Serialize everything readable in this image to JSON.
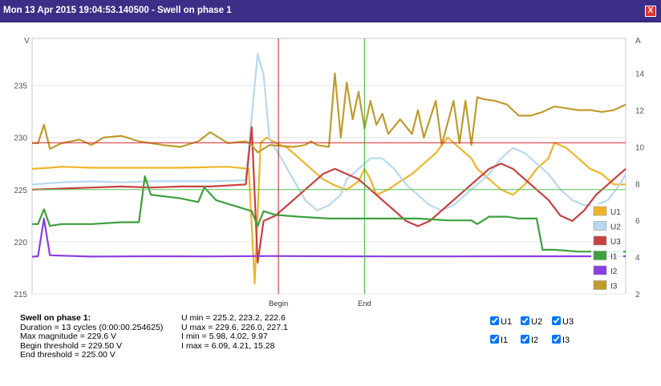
{
  "window": {
    "title": "Mon 13 Apr 2015 19:04:53.140500 - Swell on phase 1",
    "close_label": "X"
  },
  "chart_data": {
    "type": "line",
    "left_axis": {
      "label": "V",
      "min": 215,
      "max": 239.5,
      "ticks": [
        215,
        220,
        225,
        230,
        235
      ]
    },
    "right_axis": {
      "label": "A",
      "min": 2,
      "max": 15.9,
      "ticks": [
        2,
        4,
        6,
        8,
        10,
        12,
        14
      ]
    },
    "x_range": [
      0,
      100
    ],
    "markers": [
      {
        "label": "Begin",
        "x": 41.5,
        "color": "#b22222"
      },
      {
        "label": "End",
        "x": 56.0,
        "color": "#3cb43c"
      }
    ],
    "thresholds": [
      {
        "value": 229.5,
        "color": "#d62020"
      },
      {
        "value": 225.0,
        "color": "#5cc85c"
      }
    ],
    "series": [
      {
        "name": "U1",
        "axis": "left",
        "color": "#f0b429",
        "points": [
          [
            0,
            227
          ],
          [
            3,
            227.1
          ],
          [
            5,
            227.2
          ],
          [
            10,
            227.1
          ],
          [
            18,
            227.1
          ],
          [
            25,
            227.1
          ],
          [
            33,
            227.2
          ],
          [
            36.5,
            227
          ],
          [
            37.5,
            216
          ],
          [
            38.5,
            229.5
          ],
          [
            39.5,
            230
          ],
          [
            41,
            229.5
          ],
          [
            43,
            229
          ],
          [
            45,
            228
          ],
          [
            47,
            227
          ],
          [
            49,
            226
          ],
          [
            51,
            225.4
          ],
          [
            53,
            225
          ],
          [
            55,
            225.8
          ],
          [
            56,
            227
          ],
          [
            57,
            226
          ],
          [
            58,
            224.5
          ],
          [
            60,
            225
          ],
          [
            62,
            225.8
          ],
          [
            64,
            226.5
          ],
          [
            66,
            227.5
          ],
          [
            68,
            228.5
          ],
          [
            70,
            230
          ],
          [
            72,
            229
          ],
          [
            74,
            228
          ],
          [
            75,
            227
          ],
          [
            77,
            226
          ],
          [
            79,
            225
          ],
          [
            81,
            224.5
          ],
          [
            83,
            225.5
          ],
          [
            85,
            227
          ],
          [
            87,
            228
          ],
          [
            88,
            229.5
          ],
          [
            90,
            229
          ],
          [
            92,
            228
          ],
          [
            94,
            227
          ],
          [
            96,
            226.5
          ],
          [
            98,
            225.5
          ],
          [
            100,
            225.5
          ]
        ]
      },
      {
        "name": "U2",
        "axis": "left",
        "color": "#b8d8ef",
        "points": [
          [
            0,
            225.5
          ],
          [
            5,
            225.7
          ],
          [
            10,
            225.8
          ],
          [
            15,
            225.7
          ],
          [
            20,
            225.8
          ],
          [
            25,
            225.8
          ],
          [
            30,
            225.8
          ],
          [
            36,
            225.9
          ],
          [
            37,
            232
          ],
          [
            38,
            238
          ],
          [
            39,
            236
          ],
          [
            40,
            229.8
          ],
          [
            42,
            228
          ],
          [
            44,
            226
          ],
          [
            46,
            224
          ],
          [
            48,
            223
          ],
          [
            50,
            223.5
          ],
          [
            52,
            224.5
          ],
          [
            53,
            226
          ],
          [
            55,
            227
          ],
          [
            57,
            228
          ],
          [
            59,
            228
          ],
          [
            61,
            227
          ],
          [
            63,
            225.5
          ],
          [
            65,
            224.5
          ],
          [
            67,
            223.5
          ],
          [
            69,
            223
          ],
          [
            71,
            223.5
          ],
          [
            73,
            224.5
          ],
          [
            75,
            225.5
          ],
          [
            77,
            226.5
          ],
          [
            79,
            228
          ],
          [
            81,
            229
          ],
          [
            83,
            228.5
          ],
          [
            85,
            227.5
          ],
          [
            87,
            226.5
          ],
          [
            89,
            225
          ],
          [
            91,
            224
          ],
          [
            93,
            223.5
          ],
          [
            95,
            223.5
          ],
          [
            97,
            224
          ],
          [
            99,
            225.5
          ],
          [
            100,
            226.5
          ]
        ]
      },
      {
        "name": "U3",
        "axis": "left",
        "color": "#c84040",
        "points": [
          [
            0,
            225
          ],
          [
            5,
            225.1
          ],
          [
            10,
            225.2
          ],
          [
            15,
            225.3
          ],
          [
            20,
            225.2
          ],
          [
            25,
            225.3
          ],
          [
            30,
            225.3
          ],
          [
            36,
            225.5
          ],
          [
            37,
            231
          ],
          [
            38,
            218
          ],
          [
            39,
            222
          ],
          [
            41,
            222.5
          ],
          [
            43,
            223.5
          ],
          [
            45,
            224.5
          ],
          [
            47,
            225.5
          ],
          [
            49,
            226.5
          ],
          [
            51,
            227
          ],
          [
            53,
            226.5
          ],
          [
            55,
            226
          ],
          [
            57,
            225
          ],
          [
            59,
            224
          ],
          [
            61,
            223
          ],
          [
            63,
            222
          ],
          [
            65,
            221.5
          ],
          [
            67,
            222
          ],
          [
            69,
            223
          ],
          [
            71,
            224
          ],
          [
            73,
            225
          ],
          [
            75,
            226
          ],
          [
            77,
            227
          ],
          [
            79,
            227.5
          ],
          [
            81,
            227
          ],
          [
            83,
            226
          ],
          [
            85,
            225
          ],
          [
            87,
            224
          ],
          [
            89,
            222.5
          ],
          [
            91,
            222
          ],
          [
            93,
            223
          ],
          [
            95,
            224.5
          ],
          [
            97,
            225.5
          ],
          [
            99,
            226.5
          ],
          [
            100,
            227
          ]
        ]
      },
      {
        "name": "I1",
        "axis": "right",
        "color": "#3ca03c",
        "points": [
          [
            0,
            5.8
          ],
          [
            1,
            5.8
          ],
          [
            2,
            6.6
          ],
          [
            3,
            5.7
          ],
          [
            5,
            5.8
          ],
          [
            10,
            5.8
          ],
          [
            15,
            5.9
          ],
          [
            18,
            5.9
          ],
          [
            19,
            8.4
          ],
          [
            20,
            7.4
          ],
          [
            25,
            7.2
          ],
          [
            28,
            7.0
          ],
          [
            29,
            7.8
          ],
          [
            31,
            7.1
          ],
          [
            35,
            6.7
          ],
          [
            37,
            6.5
          ],
          [
            38,
            5.7
          ],
          [
            39,
            6.5
          ],
          [
            41,
            6.3
          ],
          [
            45,
            6.2
          ],
          [
            50,
            6.1
          ],
          [
            55,
            6.1
          ],
          [
            60,
            6.1
          ],
          [
            65,
            6.1
          ],
          [
            70,
            6.0
          ],
          [
            74,
            6.0
          ],
          [
            75,
            5.8
          ],
          [
            77,
            6.2
          ],
          [
            80,
            6.2
          ],
          [
            82,
            6.1
          ],
          [
            85,
            6.1
          ],
          [
            86,
            4.4
          ],
          [
            88,
            4.4
          ],
          [
            92,
            4.3
          ],
          [
            95,
            4.3
          ],
          [
            100,
            4.3
          ]
        ]
      },
      {
        "name": "I2",
        "axis": "right",
        "color": "#8a3fe0",
        "points": [
          [
            0,
            4.02
          ],
          [
            1,
            4.05
          ],
          [
            2,
            6.1
          ],
          [
            3,
            4.1
          ],
          [
            10,
            4.03
          ],
          [
            20,
            4.05
          ],
          [
            30,
            4.04
          ],
          [
            40,
            4.06
          ],
          [
            50,
            4.05
          ],
          [
            60,
            4.04
          ],
          [
            70,
            4.04
          ],
          [
            80,
            4.05
          ],
          [
            90,
            4.05
          ],
          [
            100,
            4.05
          ]
        ]
      },
      {
        "name": "I3",
        "axis": "right",
        "color": "#c09b2e",
        "points": [
          [
            0,
            10.2
          ],
          [
            1,
            10.2
          ],
          [
            2,
            11.2
          ],
          [
            3,
            9.9
          ],
          [
            5,
            10.2
          ],
          [
            8,
            10.4
          ],
          [
            10,
            10.1
          ],
          [
            12,
            10.5
          ],
          [
            15,
            10.6
          ],
          [
            18,
            10.3
          ],
          [
            20,
            10.2
          ],
          [
            22,
            10.1
          ],
          [
            25,
            10.0
          ],
          [
            28,
            10.3
          ],
          [
            30,
            10.8
          ],
          [
            33,
            10.2
          ],
          [
            36,
            10.3
          ],
          [
            37,
            10.1
          ],
          [
            38,
            9.7
          ],
          [
            40,
            10.1
          ],
          [
            44,
            10.0
          ],
          [
            46,
            10.1
          ],
          [
            47,
            10.3
          ],
          [
            48,
            10.1
          ],
          [
            50,
            10.0
          ],
          [
            51,
            14.0
          ],
          [
            52,
            10.5
          ],
          [
            53,
            13.5
          ],
          [
            54,
            11.5
          ],
          [
            55,
            13.0
          ],
          [
            56,
            11.0
          ],
          [
            57,
            12.5
          ],
          [
            58,
            11.2
          ],
          [
            59,
            11.8
          ],
          [
            60,
            10.7
          ],
          [
            62,
            11.5
          ],
          [
            64,
            10.7
          ],
          [
            65,
            12.0
          ],
          [
            66,
            10.5
          ],
          [
            68,
            12.5
          ],
          [
            69,
            10.1
          ],
          [
            71,
            12.5
          ],
          [
            72,
            10.2
          ],
          [
            73,
            12.5
          ],
          [
            74,
            10.1
          ],
          [
            75,
            12.7
          ],
          [
            76,
            12.6
          ],
          [
            78,
            12.5
          ],
          [
            80,
            12.3
          ],
          [
            82,
            11.7
          ],
          [
            84,
            11.7
          ],
          [
            86,
            11.9
          ],
          [
            88,
            12.2
          ],
          [
            90,
            12.1
          ],
          [
            92,
            12.0
          ],
          [
            94,
            12.0
          ],
          [
            96,
            11.9
          ],
          [
            98,
            12.0
          ],
          [
            100,
            12.3
          ]
        ]
      }
    ]
  },
  "info": {
    "heading": "Swell on phase 1:",
    "duration": "Duration = 13 cycles (0:00:00.254625)",
    "max_magnitude": "Max magnitude = 229.6 V",
    "begin_threshold": "Begin threshold = 229.50 V",
    "end_threshold": "End threshold = 225.00 V",
    "u_min": "U min = 225.2, 223.2, 222.6",
    "u_max": "U max = 229.6, 226.0, 227.1",
    "i_min": "I min = 5.98, 4.02, 9.97",
    "i_max": "I max = 6.09, 4.21, 15.28"
  },
  "checkboxes": [
    {
      "label": "U1",
      "checked": true
    },
    {
      "label": "U2",
      "checked": true
    },
    {
      "label": "U3",
      "checked": true
    },
    {
      "label": "I1",
      "checked": true
    },
    {
      "label": "I2",
      "checked": true
    },
    {
      "label": "I3",
      "checked": true
    }
  ]
}
